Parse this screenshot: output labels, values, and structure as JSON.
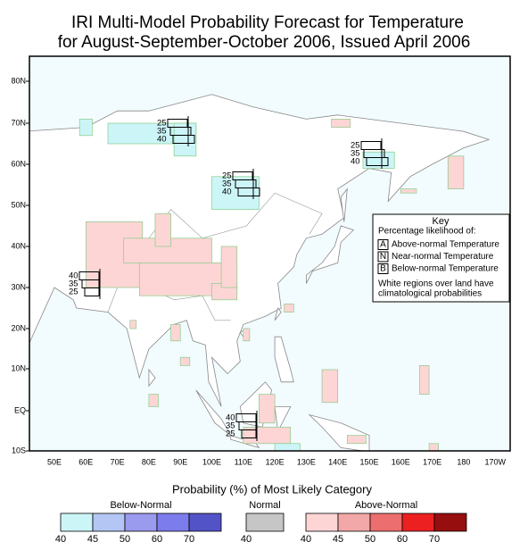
{
  "header": {
    "title": [
      "IRI Multi-Model Probability Forecast for Temperature",
      "for August-September-October 2006, Issued April 2006"
    ]
  },
  "map": {
    "lat_labels": [
      "80N",
      "70N",
      "60N",
      "50N",
      "40N",
      "30N",
      "20N",
      "10N",
      "EQ",
      "10S"
    ],
    "lon_labels": [
      "50E",
      "60E",
      "70E",
      "80E",
      "90E",
      "100E",
      "110E",
      "120E",
      "130E",
      "140E",
      "150E",
      "160E",
      "170E",
      "180",
      "170W"
    ],
    "annotations": [
      {
        "values": [
          25,
          35,
          40
        ]
      },
      {
        "values": [
          25,
          35,
          40
        ]
      },
      {
        "values": [
          25,
          35,
          40
        ]
      },
      {
        "values": [
          40,
          35,
          25
        ]
      },
      {
        "values": [
          40,
          35,
          25
        ]
      }
    ]
  },
  "key": {
    "title": "Key",
    "subtitle": "Percentage likelihood of:",
    "items": [
      {
        "letter": "A",
        "label": "Above-normal Temperature"
      },
      {
        "letter": "N",
        "label": "Near-normal Temperature"
      },
      {
        "letter": "B",
        "label": "Below-normal Temperature"
      }
    ],
    "note": [
      "White regions over land have",
      "climatological probabilities"
    ]
  },
  "legend": {
    "title": "Probability (%) of Most Likely Category",
    "groups": [
      {
        "name": "Below-Normal",
        "colors": [
          "#ccf5f8",
          "#b4c6f4",
          "#9a9aee",
          "#7c7cec",
          "#5353c8"
        ],
        "ticks": [
          40,
          45,
          50,
          60,
          70
        ]
      },
      {
        "name": "Normal",
        "colors": [
          "#c6c6c6"
        ],
        "ticks": [
          40
        ]
      },
      {
        "name": "Above-Normal",
        "colors": [
          "#fdd5d5",
          "#f2a8a8",
          "#ec6e6e",
          "#ec2020",
          "#960e0e"
        ],
        "ticks": [
          40,
          45,
          50,
          60,
          70
        ]
      }
    ]
  }
}
